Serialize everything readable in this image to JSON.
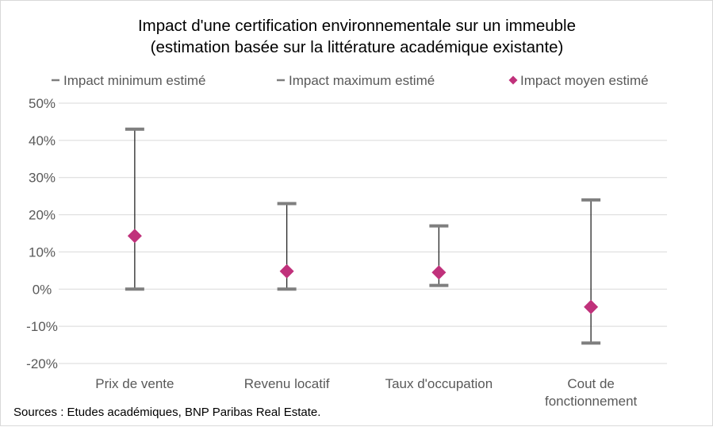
{
  "chart_data": {
    "type": "error-bar",
    "title": "Impact d'une certification environnementale sur un immeuble",
    "subtitle": "(estimation basée sur la littérature académique existante)",
    "categories": [
      [
        "Prix de vente"
      ],
      [
        "Revenu locatif"
      ],
      [
        "Taux d'occupation"
      ],
      [
        "Cout de",
        "fonctionnement"
      ]
    ],
    "series": [
      {
        "name": "Impact minimum estimé",
        "values": [
          0,
          0,
          1,
          -14.5
        ],
        "color": "#7f7f7f",
        "marker": "dash"
      },
      {
        "name": "Impact maximum estimé",
        "values": [
          43,
          23,
          17,
          24
        ],
        "color": "#7f7f7f",
        "marker": "dash"
      },
      {
        "name": "Impact moyen estimé",
        "values": [
          14.3,
          4.8,
          4.5,
          -4.8
        ],
        "color": "#c0317b",
        "marker": "diamond"
      }
    ],
    "ylim": [
      -20,
      50
    ],
    "ytick_step": 10,
    "ytick_format": "percent",
    "grid": true,
    "legend_position": "top",
    "source": "Sources : Etudes académiques, BNP Paribas Real Estate."
  }
}
